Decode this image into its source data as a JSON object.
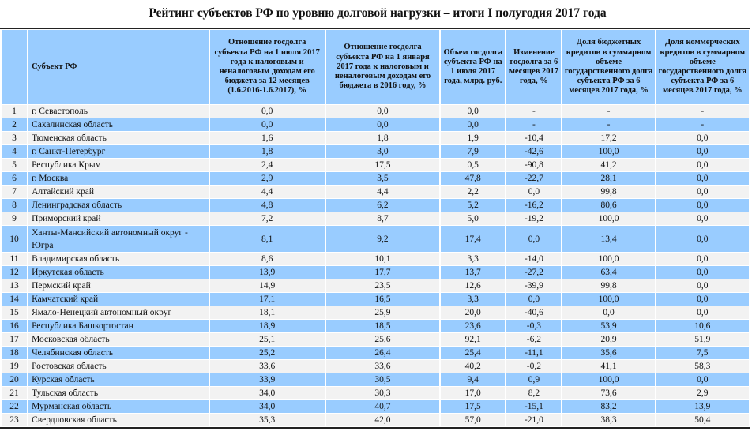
{
  "title": "Рейтинг субъектов РФ по уровню долговой нагрузки – итоги I полугодия 2017 года",
  "colors": {
    "header_bg": "#99ccff",
    "row_alt_bg": "#99ccff",
    "row_bg": "#f2f2f2"
  },
  "columns": [
    "",
    "Субъект РФ",
    "Отношение госдолга субъекта РФ на 1 июля 2017 года к налоговым и неналоговым доходам его бюджета за 12 месяцев (1.6.2016-1.6.2017), %",
    "Отношение госдолга субъекта РФ на 1 января 2017 года к налоговым и неналоговым доходам его бюджета в 2016 году, %",
    "Объем госдолга субъекта РФ на 1 июля 2017 года, млрд. руб.",
    "Изменение госдолга за 6 месяцев 2017 года, %",
    "Доля бюджетных кредитов в суммарном объеме государственного долга субъекта РФ за 6 месяцев 2017 года, %",
    "Доля коммерческих кредитов в суммарном объеме государственного долга субъекта РФ за 6 месяцев 2017 года, %"
  ],
  "rows": [
    [
      "1",
      "г. Севастополь",
      "0,0",
      "0,0",
      "0,0",
      "-",
      "-",
      "-"
    ],
    [
      "2",
      "Сахалинская область",
      "0,0",
      "0,0",
      "0,0",
      "-",
      "-",
      "-"
    ],
    [
      "3",
      "Тюменская область",
      "1,6",
      "1,8",
      "1,9",
      "-10,4",
      "17,2",
      "0,0"
    ],
    [
      "4",
      "г. Санкт-Петербург",
      "1,8",
      "3,0",
      "7,9",
      "-42,6",
      "100,0",
      "0,0"
    ],
    [
      "5",
      "Республика Крым",
      "2,4",
      "17,5",
      "0,5",
      "-90,8",
      "41,2",
      "0,0"
    ],
    [
      "6",
      "г. Москва",
      "2,9",
      "3,5",
      "47,8",
      "-22,7",
      "28,1",
      "0,0"
    ],
    [
      "7",
      "Алтайский край",
      "4,4",
      "4,4",
      "2,2",
      "0,0",
      "99,8",
      "0,0"
    ],
    [
      "8",
      "Ленинградская область",
      "4,8",
      "6,2",
      "5,2",
      "-16,2",
      "80,6",
      "0,0"
    ],
    [
      "9",
      "Приморский край",
      "7,2",
      "8,7",
      "5,0",
      "-19,2",
      "100,0",
      "0,0"
    ],
    [
      "10",
      "Ханты-Мансийский автономный округ - Югра",
      "8,1",
      "9,2",
      "17,4",
      "0,0",
      "13,4",
      "0,0"
    ],
    [
      "11",
      "Владимирская область",
      "8,6",
      "10,1",
      "3,3",
      "-14,0",
      "100,0",
      "0,0"
    ],
    [
      "12",
      "Иркутская область",
      "13,9",
      "17,7",
      "13,7",
      "-27,2",
      "63,4",
      "0,0"
    ],
    [
      "13",
      "Пермский край",
      "14,9",
      "23,5",
      "12,6",
      "-39,9",
      "99,8",
      "0,0"
    ],
    [
      "14",
      "Камчатский край",
      "17,1",
      "16,5",
      "3,3",
      "0,0",
      "100,0",
      "0,0"
    ],
    [
      "15",
      "Ямало-Ненецкий автономный округ",
      "18,1",
      "25,9",
      "20,0",
      "-40,6",
      "0,0",
      "0,0"
    ],
    [
      "16",
      "Республика Башкортостан",
      "18,9",
      "18,5",
      "23,6",
      "-0,3",
      "53,9",
      "10,6"
    ],
    [
      "17",
      "Московская область",
      "25,1",
      "25,6",
      "92,1",
      "-6,2",
      "20,9",
      "51,9"
    ],
    [
      "18",
      "Челябинская область",
      "25,2",
      "26,4",
      "25,4",
      "-11,1",
      "35,6",
      "7,5"
    ],
    [
      "19",
      "Ростовская область",
      "33,6",
      "33,6",
      "40,2",
      "-0,2",
      "41,1",
      "58,3"
    ],
    [
      "20",
      "Курская область",
      "33,9",
      "30,5",
      "9,4",
      "0,9",
      "100,0",
      "0,0"
    ],
    [
      "21",
      "Тульская область",
      "34,0",
      "30,3",
      "17,0",
      "8,2",
      "73,6",
      "2,9"
    ],
    [
      "22",
      "Мурманская область",
      "34,0",
      "40,7",
      "17,5",
      "-15,1",
      "83,2",
      "13,9"
    ],
    [
      "23",
      "Свердловская область",
      "35,3",
      "42,0",
      "57,0",
      "-21,0",
      "38,3",
      "50,4"
    ]
  ]
}
